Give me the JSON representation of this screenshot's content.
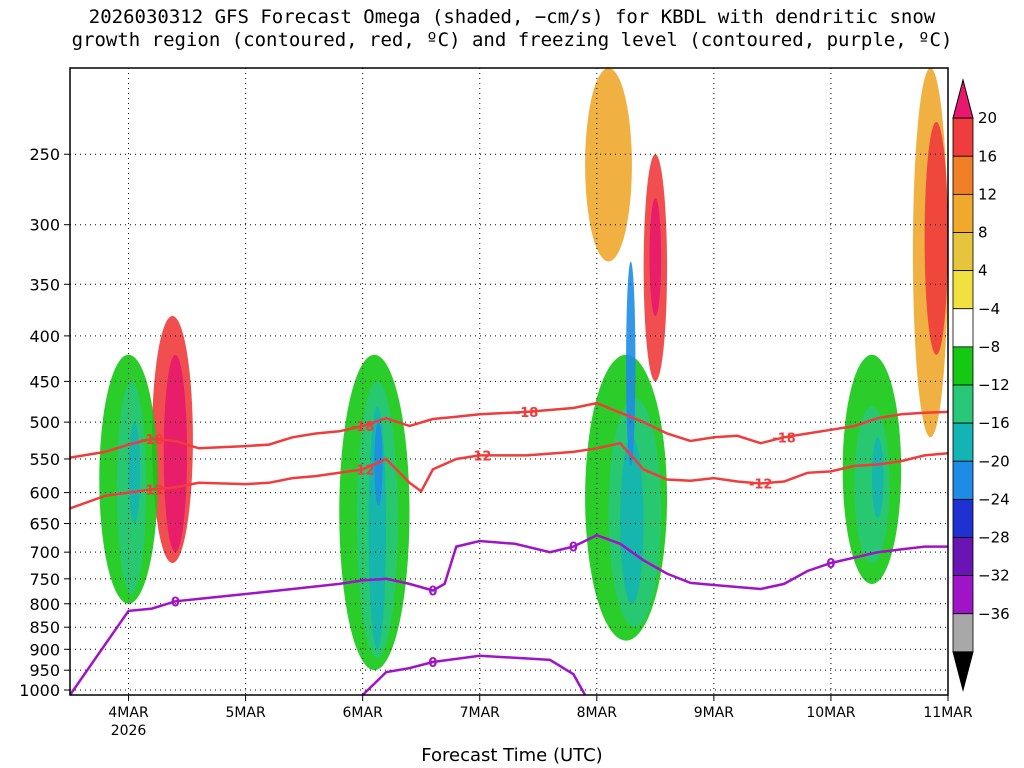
{
  "chart_data": {
    "type": "heatmap",
    "title_line1": "2026030312 GFS Forecast Omega (shaded, −cm/s) for KBDL with dendritic snow",
    "title_line2": "growth region (contoured, red, ºC) and freezing level (contoured, purple, ºC)",
    "xlabel": "Forecast Time (UTC)",
    "ylabel": "",
    "x_ticks": [
      {
        "label": "4MAR",
        "sub": "2026"
      },
      {
        "label": "5MAR",
        "sub": ""
      },
      {
        "label": "6MAR",
        "sub": ""
      },
      {
        "label": "7MAR",
        "sub": ""
      },
      {
        "label": "8MAR",
        "sub": ""
      },
      {
        "label": "9MAR",
        "sub": ""
      },
      {
        "label": "10MAR",
        "sub": ""
      },
      {
        "label": "11MAR",
        "sub": ""
      }
    ],
    "x_range_days": [
      3.5,
      11.0
    ],
    "y_ticks": [
      250,
      300,
      350,
      400,
      450,
      500,
      550,
      600,
      650,
      700,
      750,
      800,
      850,
      900,
      950,
      1000
    ],
    "y_range_hpa": [
      200,
      1013
    ],
    "y_scale": "log",
    "grid": true,
    "colorbar": {
      "labels": [
        "20",
        "16",
        "12",
        "8",
        "4",
        "−4",
        "−8",
        "−12",
        "−16",
        "−20",
        "−24",
        "−28",
        "−32",
        "−36"
      ],
      "colors": [
        "#e8186e",
        "#f03c3c",
        "#f07f28",
        "#f0a82d",
        "#e6c43c",
        "#f0e040",
        "#ffffff",
        "#14c814",
        "#28c878",
        "#14b4b4",
        "#1e8ce6",
        "#1e32d2",
        "#6a14b4",
        "#a014c8",
        "#a8a8a8",
        "#000000"
      ]
    },
    "contour_labels": {
      "dgz_upper": "-18",
      "dgz_lower": "-12",
      "freezing": "0"
    },
    "series": [
      {
        "name": "-18",
        "color": "#f03c3c",
        "points": [
          [
            3.5,
            548
          ],
          [
            3.8,
            540
          ],
          [
            4.0,
            530
          ],
          [
            4.2,
            522
          ],
          [
            4.4,
            525
          ],
          [
            4.6,
            535
          ],
          [
            5.0,
            532
          ],
          [
            5.2,
            530
          ],
          [
            5.4,
            520
          ],
          [
            5.6,
            515
          ],
          [
            5.8,
            512
          ],
          [
            6.0,
            505
          ],
          [
            6.2,
            495
          ],
          [
            6.4,
            505
          ],
          [
            6.6,
            496
          ],
          [
            6.8,
            493
          ],
          [
            7.0,
            490
          ],
          [
            7.4,
            487
          ],
          [
            7.8,
            482
          ],
          [
            8.0,
            476
          ],
          [
            8.2,
            488
          ],
          [
            8.4,
            500
          ],
          [
            8.6,
            515
          ],
          [
            8.8,
            525
          ],
          [
            9.0,
            520
          ],
          [
            9.2,
            518
          ],
          [
            9.4,
            528
          ],
          [
            9.6,
            520
          ],
          [
            9.8,
            515
          ],
          [
            10.0,
            510
          ],
          [
            10.2,
            505
          ],
          [
            10.4,
            495
          ],
          [
            10.6,
            490
          ],
          [
            10.8,
            488
          ],
          [
            11.0,
            487
          ]
        ]
      },
      {
        "name": "-12",
        "color": "#f03c3c",
        "points": [
          [
            3.5,
            625
          ],
          [
            3.8,
            605
          ],
          [
            4.0,
            600
          ],
          [
            4.2,
            595
          ],
          [
            4.4,
            592
          ],
          [
            4.6,
            585
          ],
          [
            5.0,
            587
          ],
          [
            5.2,
            585
          ],
          [
            5.4,
            578
          ],
          [
            5.6,
            575
          ],
          [
            5.8,
            570
          ],
          [
            6.0,
            565
          ],
          [
            6.2,
            550
          ],
          [
            6.4,
            585
          ],
          [
            6.5,
            598
          ],
          [
            6.6,
            565
          ],
          [
            6.8,
            550
          ],
          [
            7.0,
            545
          ],
          [
            7.4,
            545
          ],
          [
            7.8,
            540
          ],
          [
            8.0,
            535
          ],
          [
            8.2,
            528
          ],
          [
            8.4,
            565
          ],
          [
            8.6,
            580
          ],
          [
            8.8,
            582
          ],
          [
            9.0,
            578
          ],
          [
            9.2,
            583
          ],
          [
            9.4,
            586
          ],
          [
            9.6,
            583
          ],
          [
            9.8,
            570
          ],
          [
            10.0,
            568
          ],
          [
            10.2,
            560
          ],
          [
            10.4,
            558
          ],
          [
            10.6,
            553
          ],
          [
            10.8,
            545
          ],
          [
            11.0,
            542
          ]
        ]
      },
      {
        "name": "0",
        "color": "#a014c8",
        "points": [
          [
            3.5,
            1013
          ],
          [
            4.0,
            815
          ],
          [
            4.2,
            810
          ],
          [
            4.4,
            795
          ],
          [
            4.6,
            790
          ],
          [
            5.0,
            780
          ],
          [
            5.4,
            770
          ],
          [
            5.8,
            760
          ],
          [
            6.0,
            753
          ],
          [
            6.2,
            750
          ],
          [
            6.4,
            760
          ],
          [
            6.6,
            773
          ],
          [
            6.7,
            760
          ],
          [
            6.8,
            690
          ],
          [
            7.0,
            680
          ],
          [
            7.3,
            685
          ],
          [
            7.6,
            700
          ],
          [
            7.8,
            690
          ],
          [
            8.0,
            670
          ],
          [
            8.2,
            685
          ],
          [
            8.4,
            715
          ],
          [
            8.6,
            740
          ],
          [
            8.8,
            758
          ],
          [
            9.0,
            762
          ],
          [
            9.4,
            770
          ],
          [
            9.6,
            760
          ],
          [
            9.8,
            735
          ],
          [
            10.0,
            720
          ],
          [
            10.2,
            710
          ],
          [
            10.4,
            700
          ],
          [
            10.6,
            695
          ],
          [
            10.8,
            690
          ],
          [
            11.0,
            690
          ]
        ]
      },
      {
        "name": "0",
        "color": "#a014c8",
        "points": [
          [
            6.0,
            1013
          ],
          [
            6.2,
            955
          ],
          [
            6.4,
            945
          ],
          [
            6.6,
            930
          ],
          [
            7.0,
            915
          ],
          [
            7.3,
            920
          ],
          [
            7.6,
            925
          ],
          [
            7.8,
            960
          ],
          [
            7.9,
            1013
          ]
        ]
      }
    ],
    "shaded_regions": [
      {
        "t0": 4.2,
        "t1": 4.55,
        "p0": 380,
        "p1": 720,
        "level": 16
      },
      {
        "t0": 4.3,
        "t1": 4.5,
        "p0": 420,
        "p1": 700,
        "level": 20
      },
      {
        "t0": 3.75,
        "t1": 4.25,
        "p0": 420,
        "p1": 800,
        "level": -8
      },
      {
        "t0": 3.9,
        "t1": 4.15,
        "p0": 450,
        "p1": 780,
        "level": -12
      },
      {
        "t0": 4.0,
        "t1": 4.1,
        "p0": 500,
        "p1": 650,
        "level": -16
      },
      {
        "t0": 5.8,
        "t1": 6.4,
        "p0": 420,
        "p1": 950,
        "level": -8
      },
      {
        "t0": 5.95,
        "t1": 6.3,
        "p0": 450,
        "p1": 920,
        "level": -12
      },
      {
        "t0": 6.05,
        "t1": 6.2,
        "p0": 480,
        "p1": 900,
        "level": -16
      },
      {
        "t0": 6.1,
        "t1": 6.17,
        "p0": 500,
        "p1": 620,
        "level": -20
      },
      {
        "t0": 7.9,
        "t1": 8.6,
        "p0": 420,
        "p1": 880,
        "level": -8
      },
      {
        "t0": 8.1,
        "t1": 8.55,
        "p0": 470,
        "p1": 850,
        "level": -12
      },
      {
        "t0": 8.2,
        "t1": 8.4,
        "p0": 520,
        "p1": 800,
        "level": -16
      },
      {
        "t0": 8.25,
        "t1": 8.33,
        "p0": 330,
        "p1": 560,
        "level": -20
      },
      {
        "t0": 8.4,
        "t1": 8.6,
        "p0": 250,
        "p1": 450,
        "level": 16
      },
      {
        "t0": 8.45,
        "t1": 8.55,
        "p0": 280,
        "p1": 380,
        "level": 20
      },
      {
        "t0": 7.9,
        "t1": 8.3,
        "p0": 200,
        "p1": 330,
        "level": 8
      },
      {
        "t0": 10.7,
        "t1": 11.0,
        "p0": 200,
        "p1": 520,
        "level": 8
      },
      {
        "t0": 10.8,
        "t1": 11.0,
        "p0": 230,
        "p1": 420,
        "level": 16
      },
      {
        "t0": 10.1,
        "t1": 10.6,
        "p0": 420,
        "p1": 760,
        "level": -8
      },
      {
        "t0": 10.2,
        "t1": 10.5,
        "p0": 480,
        "p1": 720,
        "level": -12
      },
      {
        "t0": 10.35,
        "t1": 10.45,
        "p0": 520,
        "p1": 640,
        "level": -16
      }
    ]
  }
}
